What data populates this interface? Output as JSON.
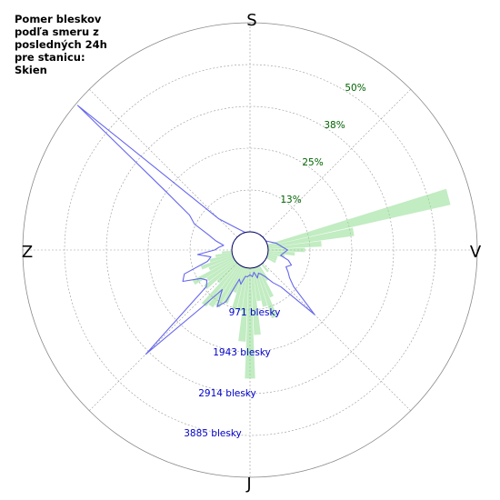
{
  "chart_data": {
    "type": "polar-rose",
    "title_lines": [
      "Pomer bleskov",
      "podľa smeru z",
      "posledných 24h",
      "pre stanicu:",
      "Skien"
    ],
    "directions": {
      "north": "S",
      "east": "V",
      "south": "J",
      "west": "Z"
    },
    "percent_rings": [
      "13%",
      "25%",
      "38%",
      "50%"
    ],
    "count_rings": [
      "971 blesky",
      "1943 blesky",
      "2914 blesky",
      "3885 blesky"
    ],
    "percent_ring_values": [
      12.5,
      25,
      37.5,
      50
    ],
    "count_ring_values": [
      971,
      1943,
      2914,
      3885
    ],
    "max_percent": 62.5,
    "max_count": 4856,
    "colors": {
      "bars": "#90dd90",
      "line": "#6666ee",
      "grid": "#999999",
      "pct_text": "#006400",
      "cnt_text": "#0000cc"
    },
    "bars_percent": {
      "bearing_deg": [
        75,
        80,
        85,
        90,
        95,
        100,
        105,
        110,
        115,
        140,
        150,
        155,
        160,
        165,
        170,
        175,
        180,
        185,
        190,
        195,
        200,
        205,
        210,
        215,
        220,
        225,
        230,
        235,
        240,
        245,
        250,
        255,
        260,
        265
      ],
      "value": [
        56,
        26,
        16,
        11,
        8,
        5,
        3,
        3,
        3,
        3,
        5,
        10,
        16,
        12,
        10,
        20,
        33,
        22,
        13,
        13,
        8,
        12,
        14,
        15,
        16,
        8,
        12,
        10,
        14,
        8,
        10,
        7,
        5,
        3
      ]
    },
    "line_counts": {
      "bearing_deg": [
        0,
        15,
        45,
        60,
        75,
        90,
        100,
        105,
        110,
        115,
        120,
        125,
        130,
        135,
        140,
        145,
        150,
        155,
        160,
        165,
        170,
        175,
        180,
        185,
        190,
        195,
        200,
        205,
        210,
        215,
        220,
        225,
        230,
        235,
        240,
        245,
        250,
        255,
        260,
        265,
        270,
        275,
        280,
        285,
        290,
        295,
        300,
        305,
        310,
        315,
        330,
        345
      ],
      "value": [
        0,
        0,
        0,
        0,
        200,
        450,
        300,
        500,
        600,
        500,
        600,
        700,
        900,
        1700,
        700,
        500,
        300,
        200,
        150,
        250,
        100,
        200,
        150,
        200,
        200,
        400,
        300,
        900,
        1100,
        700,
        1300,
        3000,
        900,
        800,
        900,
        1300,
        1200,
        600,
        500,
        800,
        400,
        300,
        200,
        400,
        600,
        1000,
        1200,
        2000,
        4800,
        600,
        150,
        0
      ]
    }
  }
}
